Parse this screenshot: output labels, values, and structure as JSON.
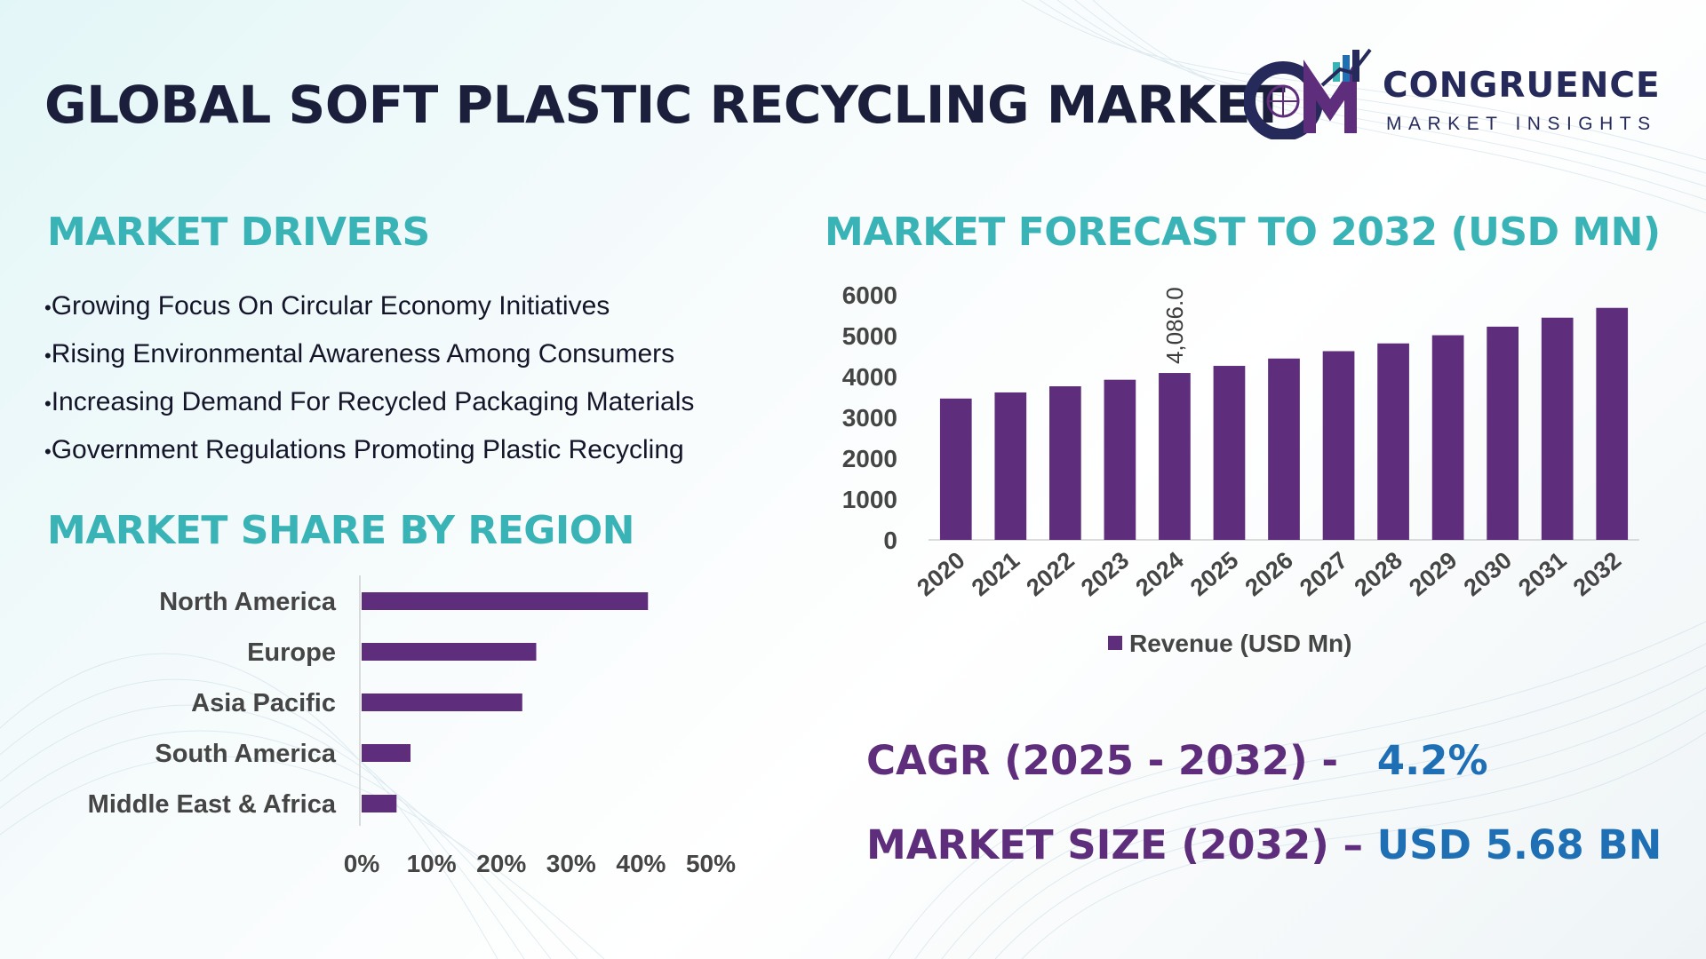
{
  "header": {
    "title": "GLOBAL SOFT PLASTIC RECYCLING MARKET",
    "logo_name": "CONGRUENCE",
    "logo_tagline": "MARKET INSIGHTS"
  },
  "drivers": {
    "title": "MARKET DRIVERS",
    "items": [
      "Growing Focus On Circular Economy Initiatives",
      "Rising Environmental Awareness Among Consumers",
      "Increasing Demand For Recycled Packaging Materials",
      "Government Regulations Promoting Plastic Recycling"
    ]
  },
  "forecast": {
    "title": "MARKET FORECAST TO 2032 (USD MN)"
  },
  "region": {
    "title": "MARKET SHARE BY REGION"
  },
  "stats": {
    "cagr_label": "CAGR (2025 - 2032) -",
    "cagr_value": "4.2%",
    "size_label": "MARKET SIZE (2032) –",
    "size_value": "USD 5.68 BN"
  },
  "colors": {
    "bar": "#5e2d7b",
    "section_title": "#3ab3b6",
    "stat_label": "#5e2d7b",
    "stat_value": "#1f6fb5"
  },
  "chart_data": [
    {
      "type": "bar",
      "orientation": "vertical",
      "categories": [
        "2020",
        "2021",
        "2022",
        "2023",
        "2024",
        "2025",
        "2026",
        "2027",
        "2028",
        "2029",
        "2030",
        "2031",
        "2032"
      ],
      "series": [
        {
          "name": "Revenue (USD Mn)",
          "values": [
            3460,
            3610,
            3760,
            3920,
            4086,
            4260,
            4440,
            4620,
            4810,
            5010,
            5220,
            5440,
            5680
          ]
        }
      ],
      "data_labels": [
        {
          "index": 4,
          "text": "4,086.0"
        }
      ],
      "yticks": [
        "0",
        "1000",
        "2000",
        "3000",
        "4000",
        "5000",
        "6000"
      ],
      "ylim": [
        0,
        6000
      ],
      "legend": "bottom",
      "grid": false
    },
    {
      "type": "bar",
      "orientation": "horizontal",
      "categories": [
        "North America",
        "Europe",
        "Asia Pacific",
        "South America",
        "Middle East & Africa"
      ],
      "values": [
        41,
        25,
        23,
        7,
        5
      ],
      "xticks": [
        "0%",
        "10%",
        "20%",
        "30%",
        "40%",
        "50%"
      ],
      "xlim": [
        0,
        50
      ],
      "grid": false
    }
  ]
}
